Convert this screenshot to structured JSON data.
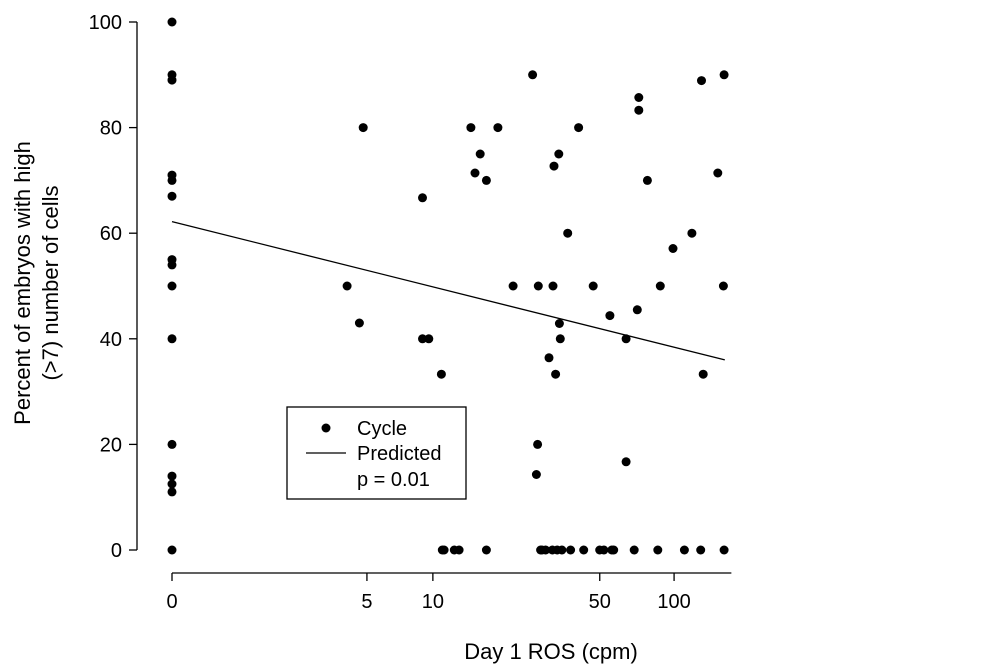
{
  "chart_data": {
    "type": "scatter",
    "xlabel": "Day 1 ROS (cpm)",
    "ylabel_lines": [
      "Percent of embryos with high",
      "(>7) number of cells"
    ],
    "x_scale": "log(x+1)",
    "x_ticks": [
      {
        "value": 0,
        "label": "0"
      },
      {
        "value": 5,
        "label": "5"
      },
      {
        "value": 10,
        "label": "10"
      },
      {
        "value": 50,
        "label": "50"
      },
      {
        "value": 100,
        "label": "100"
      }
    ],
    "y_ticks": [
      0,
      20,
      40,
      60,
      80,
      100
    ],
    "ylim": [
      0,
      100
    ],
    "xlim": [
      0,
      170
    ],
    "grid": false,
    "legend": {
      "position": "lower-left",
      "items": [
        {
          "label": "Cycle",
          "marker": "point"
        },
        {
          "label": "Predicted",
          "marker": "line"
        }
      ],
      "note": "p = 0.01"
    },
    "series": [
      {
        "name": "Cycle",
        "kind": "scatter",
        "points": [
          [
            0,
            100
          ],
          [
            0,
            90
          ],
          [
            0,
            89
          ],
          [
            0,
            71
          ],
          [
            0,
            70
          ],
          [
            0,
            67
          ],
          [
            0,
            55
          ],
          [
            0,
            54
          ],
          [
            0,
            50
          ],
          [
            0,
            40
          ],
          [
            0,
            20
          ],
          [
            0,
            14
          ],
          [
            0,
            12.5
          ],
          [
            0,
            11
          ],
          [
            0,
            0
          ],
          [
            4,
            50
          ],
          [
            4.6,
            43
          ],
          [
            4.8,
            80
          ],
          [
            9,
            40
          ],
          [
            9,
            66.7
          ],
          [
            9.6,
            40
          ],
          [
            10.9,
            33.3
          ],
          [
            11,
            0
          ],
          [
            11.2,
            0
          ],
          [
            12.4,
            0
          ],
          [
            13,
            0
          ],
          [
            14.6,
            80
          ],
          [
            15.2,
            71.4
          ],
          [
            16,
            75
          ],
          [
            17,
            70
          ],
          [
            17,
            0
          ],
          [
            19,
            80
          ],
          [
            22,
            50
          ],
          [
            26.5,
            90
          ],
          [
            27.5,
            14.3
          ],
          [
            27.8,
            20
          ],
          [
            28,
            50
          ],
          [
            28.6,
            0
          ],
          [
            29,
            0
          ],
          [
            30,
            0
          ],
          [
            31,
            36.4
          ],
          [
            32,
            0
          ],
          [
            32.2,
            50
          ],
          [
            32.5,
            72.7
          ],
          [
            33,
            33.3
          ],
          [
            33.5,
            0
          ],
          [
            34,
            75
          ],
          [
            34.2,
            42.9
          ],
          [
            34.5,
            40
          ],
          [
            35,
            0
          ],
          [
            37,
            60
          ],
          [
            38,
            0
          ],
          [
            41,
            80
          ],
          [
            43,
            0
          ],
          [
            47,
            50
          ],
          [
            50,
            0
          ],
          [
            52,
            0
          ],
          [
            55,
            44.4
          ],
          [
            56,
            0
          ],
          [
            57,
            0
          ],
          [
            64,
            40
          ],
          [
            64,
            16.7
          ],
          [
            69,
            0
          ],
          [
            71,
            45.5
          ],
          [
            72,
            85.7
          ],
          [
            72,
            83.3
          ],
          [
            78,
            70
          ],
          [
            86,
            0
          ],
          [
            88,
            50
          ],
          [
            99,
            57.1
          ],
          [
            110,
            0
          ],
          [
            118,
            60
          ],
          [
            128,
            0
          ],
          [
            129,
            88.9
          ],
          [
            131,
            33.3
          ],
          [
            150,
            71.4
          ],
          [
            158,
            50
          ],
          [
            159,
            90
          ],
          [
            159,
            0
          ]
        ]
      },
      {
        "name": "Predicted",
        "kind": "line",
        "x": [
          0,
          160
        ],
        "y": [
          62.2,
          36
        ]
      }
    ]
  }
}
